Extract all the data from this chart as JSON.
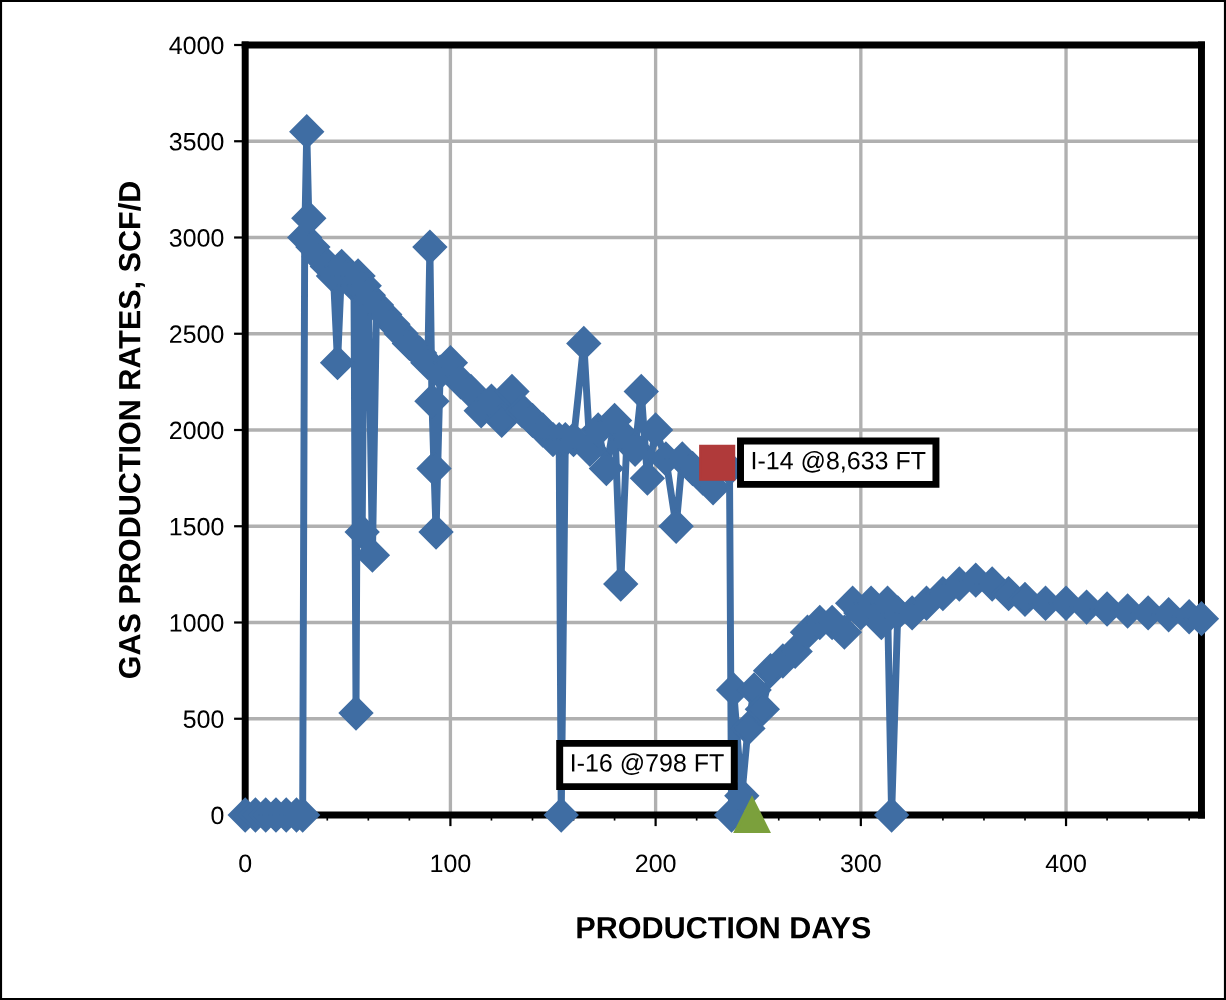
{
  "chart_data": {
    "type": "line",
    "xlabel": "PRODUCTION DAYS",
    "ylabel": "GAS PRODUCTION RATES, SCF/D",
    "xlim": [
      0,
      466
    ],
    "ylim": [
      0,
      4000
    ],
    "xticks": [
      0,
      {
        "value": 20,
        "label": null
      },
      {
        "value": 40,
        "label": null
      },
      {
        "value": 60,
        "label": null
      },
      {
        "value": 80,
        "label": null
      },
      100,
      {
        "value": 120,
        "label": null
      },
      {
        "value": 140,
        "label": null
      },
      {
        "value": 160,
        "label": null
      },
      {
        "value": 180,
        "label": null
      },
      200,
      {
        "value": 220,
        "label": null
      },
      {
        "value": 240,
        "label": null
      },
      {
        "value": 260,
        "label": null
      },
      {
        "value": 280,
        "label": null
      },
      300,
      {
        "value": 320,
        "label": null
      },
      {
        "value": 340,
        "label": null
      },
      {
        "value": 360,
        "label": null
      },
      {
        "value": 380,
        "label": null
      },
      400,
      {
        "value": 420,
        "label": null
      },
      {
        "value": 440,
        "label": null
      },
      {
        "value": 460,
        "label": null
      }
    ],
    "yticks": [
      0,
      500,
      1000,
      1500,
      2000,
      2500,
      3000,
      3500,
      4000
    ],
    "grid": true,
    "line_style": "solid",
    "series": [
      {
        "color": "#3f6da3",
        "marker": "diamond",
        "x": [
          0,
          5,
          10,
          15,
          20,
          25,
          28,
          29,
          30,
          31,
          33,
          36,
          40,
          43,
          45,
          47,
          50,
          53,
          54,
          55,
          57,
          58,
          60,
          62,
          64,
          68,
          72,
          76,
          80,
          85,
          89,
          90,
          91,
          92,
          93,
          95,
          100,
          105,
          110,
          115,
          120,
          125,
          130,
          135,
          140,
          145,
          150,
          153,
          154,
          156,
          160,
          165,
          168,
          172,
          176,
          180,
          183,
          186,
          190,
          193,
          196,
          200,
          205,
          210,
          213,
          218,
          223,
          228,
          236,
          237,
          238,
          242,
          245,
          248,
          252,
          256,
          262,
          268,
          274,
          280,
          286,
          292,
          296,
          300,
          305,
          310,
          313,
          315,
          318,
          325,
          332,
          340,
          348,
          356,
          364,
          372,
          380,
          390,
          400,
          410,
          420,
          430,
          440,
          450,
          460,
          466
        ],
        "values": [
          0,
          0,
          0,
          0,
          0,
          0,
          0,
          3000,
          3550,
          3100,
          2950,
          2900,
          2850,
          2800,
          2350,
          2850,
          2800,
          2750,
          530,
          2800,
          1470,
          2750,
          2700,
          1350,
          2650,
          2600,
          2550,
          2500,
          2450,
          2400,
          2350,
          2950,
          2150,
          1800,
          1470,
          2300,
          2350,
          2250,
          2200,
          2100,
          2150,
          2050,
          2200,
          2100,
          2050,
          2000,
          1950,
          1950,
          0,
          1950,
          1950,
          2450,
          1900,
          2000,
          1800,
          2050,
          1200,
          1950,
          1900,
          2200,
          1750,
          2000,
          1850,
          1500,
          1850,
          1800,
          1750,
          1700,
          1800,
          0,
          650,
          100,
          450,
          650,
          550,
          750,
          800,
          850,
          950,
          1000,
          1000,
          950,
          1100,
          1050,
          1100,
          1000,
          1100,
          0,
          1050,
          1050,
          1100,
          1150,
          1200,
          1220,
          1200,
          1150,
          1120,
          1100,
          1100,
          1080,
          1070,
          1060,
          1050,
          1040,
          1030,
          1020
        ]
      },
      {
        "name": "I-14 @8,633 FT",
        "color": "#b03a3a",
        "marker": "square",
        "x": [
          230
        ],
        "values": [
          1830
        ]
      },
      {
        "name": "I-16 @798 FT",
        "color": "#7ba03c",
        "marker": "triangle",
        "x": [
          247
        ],
        "values": [
          0
        ]
      }
    ]
  }
}
